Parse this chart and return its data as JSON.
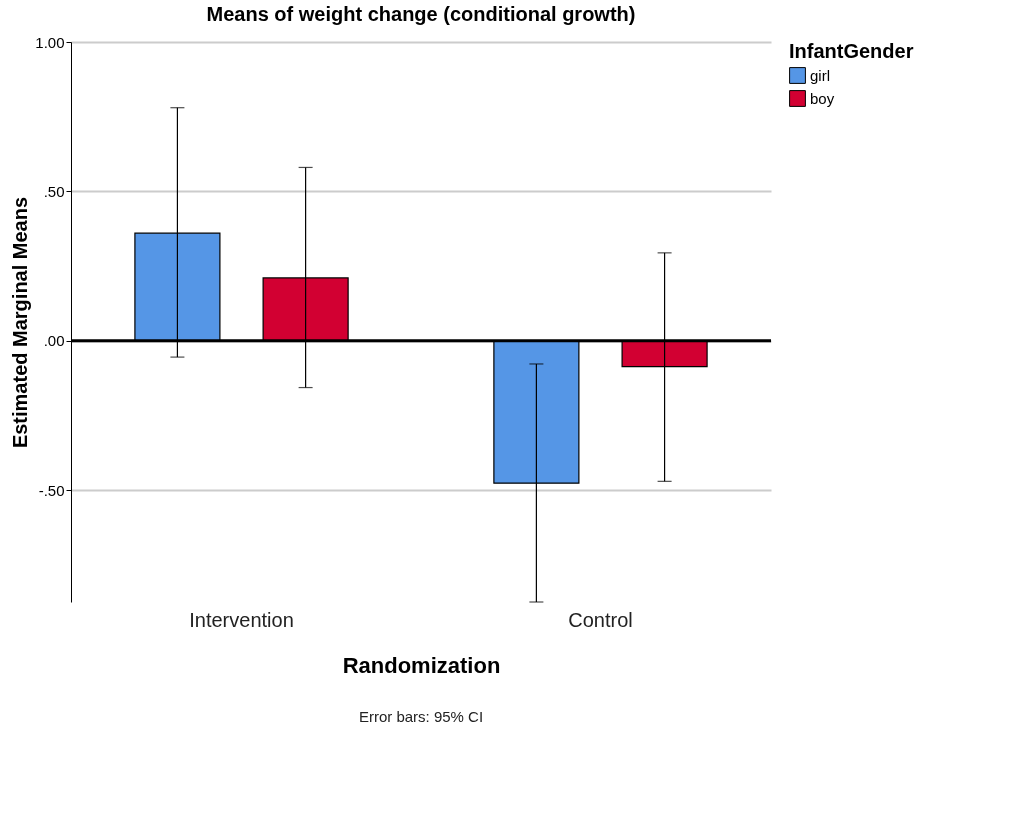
{
  "chart_data": {
    "type": "bar",
    "title": "Means of weight change (conditional growth)",
    "xlabel": "Randomization",
    "ylabel": "Estimated Marginal Means",
    "legend_title": "InfantGender",
    "categories": [
      "Intervention",
      "Control"
    ],
    "series": [
      {
        "name": "girl",
        "color": "#5596e6",
        "values": [
          0.36,
          -0.477
        ],
        "errors": [
          [
            -0.055,
            0.78
          ],
          [
            -0.875,
            -0.078
          ]
        ]
      },
      {
        "name": "boy",
        "color": "#d20032",
        "values": [
          0.21,
          -0.087
        ],
        "errors": [
          [
            -0.157,
            0.58
          ],
          [
            -0.471,
            0.294
          ]
        ]
      }
    ],
    "ylim": [
      -0.875,
      1.0
    ],
    "yticks": [
      {
        "value": 1.0,
        "label": "1.00"
      },
      {
        "value": 0.5,
        "label": ".50"
      },
      {
        "value": 0,
        "label": ".00"
      },
      {
        "value": -0.5,
        "label": "-.50"
      }
    ],
    "grid": "y",
    "legend": "top right",
    "ref_lines": [
      {
        "axis": "y",
        "value": 0,
        "color": "#000000"
      }
    ],
    "annotations": [
      "Error bars: 95% CI"
    ]
  }
}
